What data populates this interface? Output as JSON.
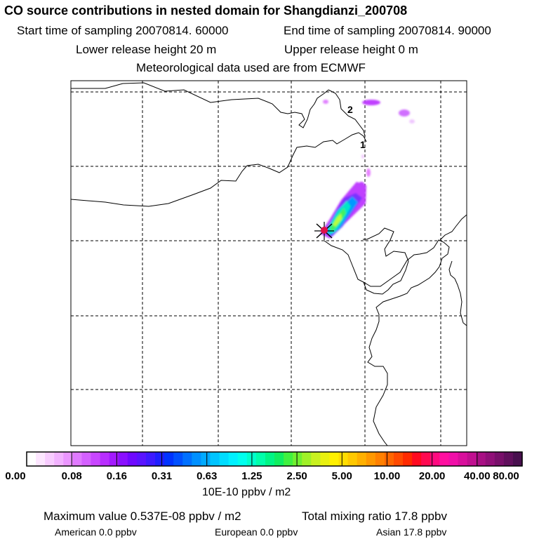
{
  "header": {
    "title": "CO  source contributions in nested domain for Shangdianzi_200708",
    "start_time": "Start time of sampling 20070814. 60000",
    "end_time": "End time of sampling 20070814. 90000",
    "lower_height": "Lower release height   20 m",
    "upper_height": "Upper release height    0 m",
    "met_data": "Meteorological data used are from ECMWF"
  },
  "map": {
    "markers": [
      {
        "label": "2"
      },
      {
        "label": "1"
      }
    ],
    "receptor_color": "#e0104a",
    "plume_colors": [
      "#c040ff",
      "#7a33ff",
      "#0099ff",
      "#00e6c8",
      "#40f060",
      "#b8ff40"
    ]
  },
  "colorbar": {
    "ticks": [
      "0.00",
      "0.08",
      "0.16",
      "0.31",
      "0.63",
      "1.25",
      "2.50",
      "5.00",
      "10.00",
      "20.00",
      "40.00",
      "80.00"
    ],
    "colors": [
      "#ffffff",
      "#fde6ff",
      "#f8ccff",
      "#f2b2ff",
      "#eb96ff",
      "#e07aff",
      "#d460ff",
      "#c846ff",
      "#b82eff",
      "#a31aff",
      "#8a10ff",
      "#6f0aff",
      "#5a14ff",
      "#3e1aff",
      "#1f1fff",
      "#0033ff",
      "#0050ff",
      "#0070ff",
      "#0090ff",
      "#00aaff",
      "#00c4ff",
      "#00dcff",
      "#00f0ff",
      "#00ffee",
      "#00ffcc",
      "#00ffaa",
      "#00f585",
      "#10ee60",
      "#40f040",
      "#70f030",
      "#a0f028",
      "#c8f020",
      "#e8f010",
      "#fff000",
      "#ffdd00",
      "#ffc800",
      "#ffb000",
      "#ff9800",
      "#ff8000",
      "#ff6600",
      "#ff4a00",
      "#ff2a00",
      "#ff0a20",
      "#ff0a50",
      "#ff0a80",
      "#ff10a0",
      "#f010a8",
      "#d8109c",
      "#c01090",
      "#a81084",
      "#901078",
      "#78106a",
      "#60105c",
      "#48104e"
    ],
    "unit": "10E-10 ppbv / m2"
  },
  "summary": {
    "max_value": "Maximum value  0.537E-08 ppbv / m2",
    "total": "Total mixing ratio       17.8 ppbv",
    "american": "American        0.0 ppbv",
    "european": "European        0.0 ppbv",
    "asian": "Asian       17.8 ppbv"
  }
}
